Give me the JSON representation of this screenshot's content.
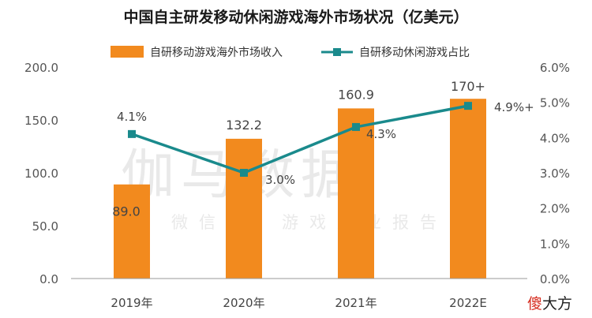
{
  "chart_data": {
    "type": "bar",
    "title": "中国自主研发移动休闲游戏海外市场状况（亿美元）",
    "categories": [
      "2019年",
      "2020年",
      "2021年",
      "2022E"
    ],
    "series": [
      {
        "name": "自研移动游戏海外市场收入",
        "kind": "bar",
        "axis": "left",
        "values": [
          89.0,
          132.2,
          160.9,
          170
        ],
        "labels": [
          "89.0",
          "132.2",
          "160.9",
          "170+"
        ]
      },
      {
        "name": "自研移动休闲游戏占比",
        "kind": "line",
        "axis": "right",
        "values": [
          4.1,
          3.0,
          4.3,
          4.9
        ],
        "labels": [
          "4.1%",
          "3.0%",
          "4.3%",
          "4.9%+"
        ]
      }
    ],
    "y_left": {
      "ticks": [
        "0.0",
        "50.0",
        "100.0",
        "150.0",
        "200.0"
      ],
      "range": [
        0,
        200
      ]
    },
    "y_right": {
      "ticks": [
        "0.0%",
        "1.0%",
        "2.0%",
        "3.0%",
        "4.0%",
        "5.0%",
        "6.0%"
      ],
      "range": [
        0,
        6
      ]
    },
    "legend": "top",
    "grid": false,
    "colors": {
      "bar": "#f28a1e",
      "line": "#1a8a8c"
    }
  },
  "watermark": {
    "main": "伽马数据",
    "sub": "微信号：游戏产业报告"
  },
  "logo": {
    "first": "傻",
    "rest": "大方"
  }
}
